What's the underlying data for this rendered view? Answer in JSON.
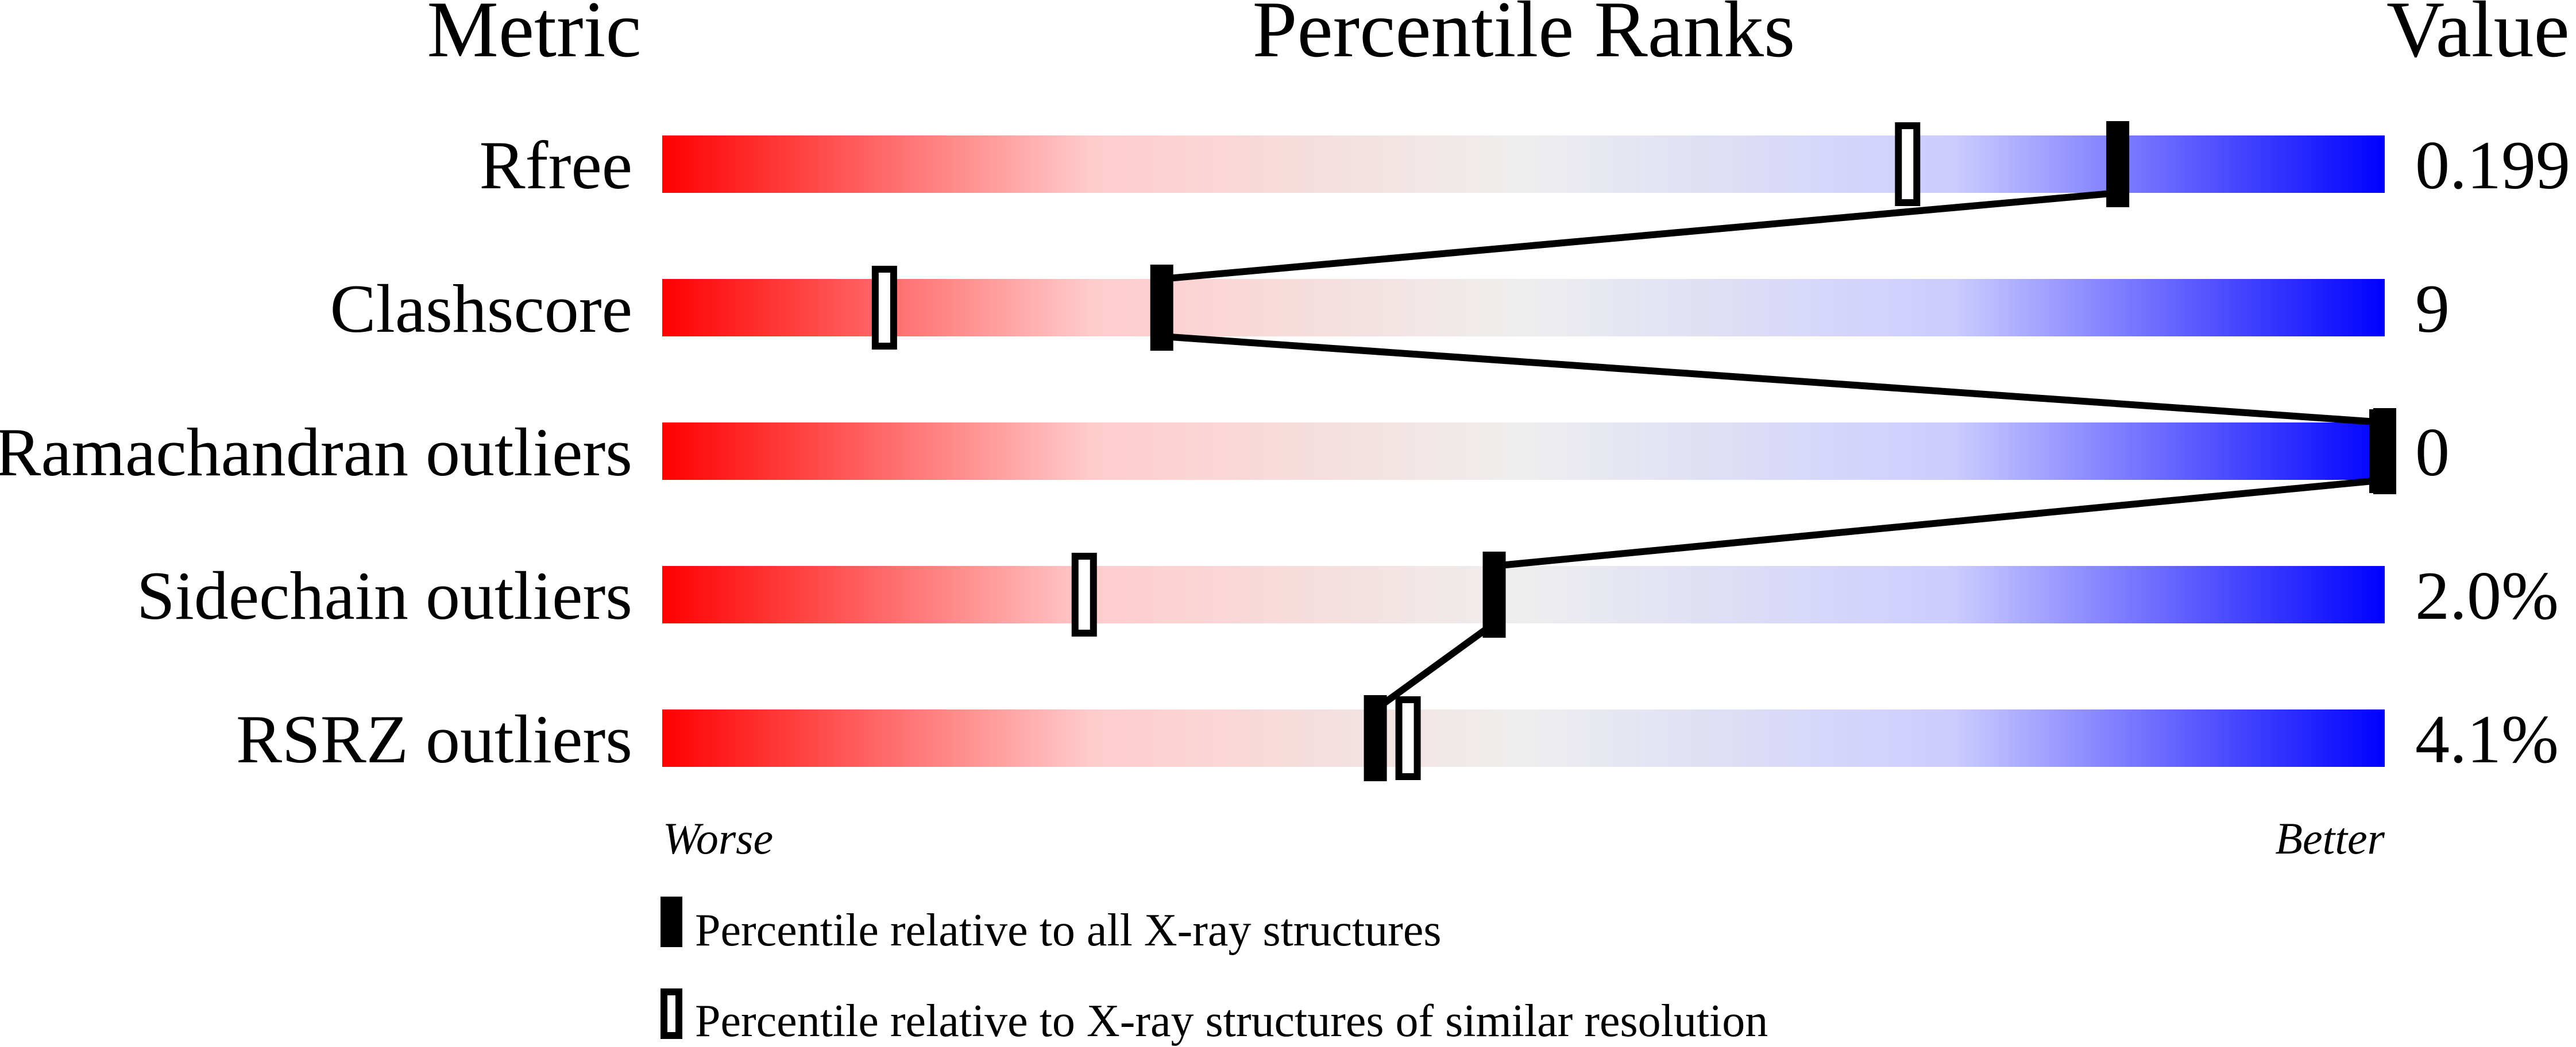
{
  "chart_data": {
    "type": "bar",
    "headers": {
      "metric": "Metric",
      "ranks": "Percentile Ranks",
      "value": "Value"
    },
    "xlim": [
      0,
      100
    ],
    "rows": [
      {
        "metric": "Rfree",
        "value": "0.199",
        "percentile_all": 84.5,
        "percentile_similar": 72.3
      },
      {
        "metric": "Clashscore",
        "value": "9",
        "percentile_all": 29,
        "percentile_similar": 12.9
      },
      {
        "metric": "Ramachandran outliers",
        "value": "0",
        "percentile_all": 100,
        "percentile_similar": 100
      },
      {
        "metric": "Sidechain outliers",
        "value": "2.0%",
        "percentile_all": 48.3,
        "percentile_similar": 24.5
      },
      {
        "metric": "RSRZ outliers",
        "value": "4.1%",
        "percentile_all": 41.4,
        "percentile_similar": 43.3
      }
    ],
    "axis_labels": {
      "left": "Worse",
      "right": "Better"
    },
    "legend": {
      "filled": "Percentile relative to all X-ray structures",
      "hollow": "Percentile relative to X-ray structures of similar resolution"
    },
    "colors": {
      "worse": "#ff0000",
      "middle": "#eeeeee",
      "better": "#0000ff",
      "marker": "#000000"
    }
  }
}
